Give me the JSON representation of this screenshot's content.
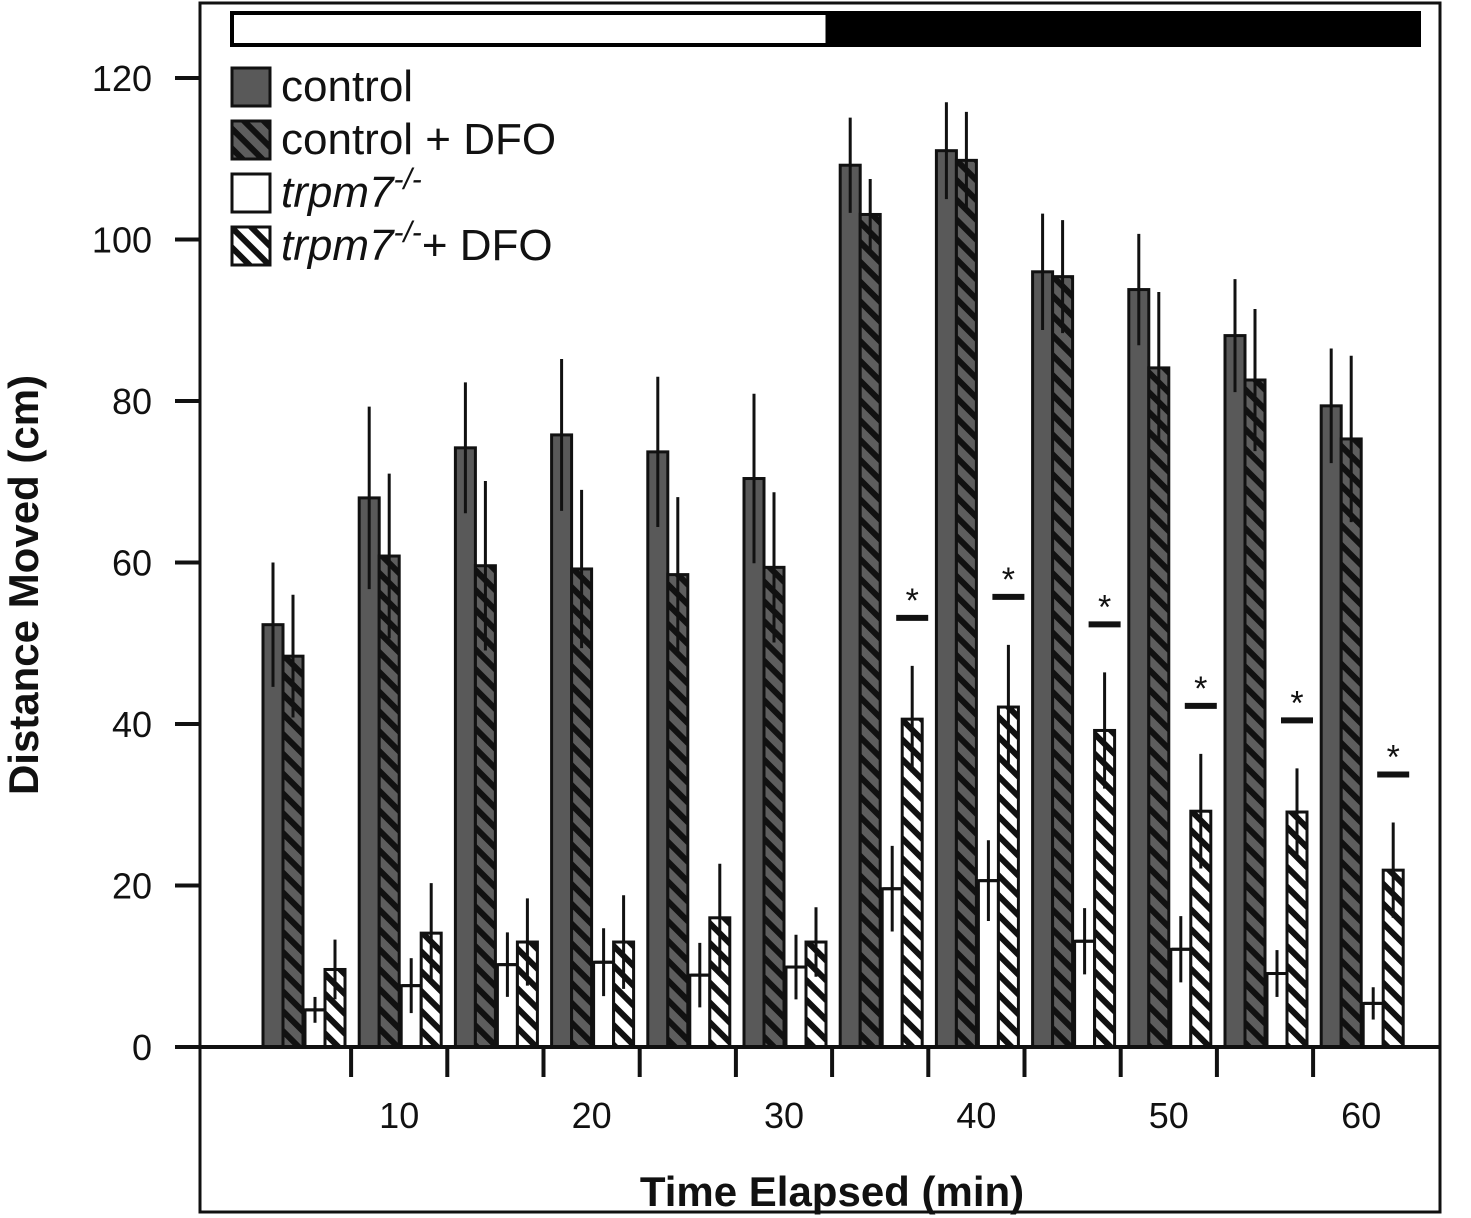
{
  "chart_data": {
    "type": "bar",
    "xlabel": "Time Elapsed (min)",
    "ylabel": "Distance Moved (cm)",
    "ylim": [
      0,
      120
    ],
    "yticks": [
      0,
      20,
      40,
      60,
      80,
      100,
      120
    ],
    "x_tick_labels": [
      "10",
      "20",
      "30",
      "40",
      "50",
      "60"
    ],
    "grid": false,
    "legend_position": "top-left",
    "light_dark_bar": {
      "light_fraction": 0.5,
      "light_color": "#ffffff",
      "dark_color": "#000000"
    },
    "significance_marker": "*",
    "significant_bins": [
      7,
      8,
      9,
      10,
      11,
      12
    ],
    "colors": {
      "control": "#595959",
      "outline": "#111111",
      "mutant": "#ffffff"
    },
    "series": [
      {
        "name": "control",
        "name_parts": [
          "control",
          "",
          ""
        ],
        "pattern": "solid-gray",
        "values": [
          52.3,
          68,
          74.2,
          75.8,
          73.7,
          70.4,
          109.2,
          111,
          96,
          93.8,
          88.1,
          79.4
        ],
        "errors": [
          7.7,
          11.3,
          8.1,
          9.4,
          9.3,
          10.5,
          5.9,
          6,
          7.2,
          6.9,
          7,
          7.1
        ]
      },
      {
        "name": "control + DFO",
        "name_parts": [
          "control + DFO",
          "",
          ""
        ],
        "pattern": "hatched-gray",
        "values": [
          48.4,
          60.8,
          59.6,
          59.2,
          58.5,
          59.4,
          103.1,
          109.8,
          95.4,
          84.1,
          82.6,
          75.3
        ],
        "errors": [
          7.6,
          10.2,
          10.5,
          9.8,
          9.6,
          9.3,
          4.4,
          6,
          7,
          9.4,
          8.8,
          10.3
        ]
      },
      {
        "name": "trpm7-/-",
        "name_parts": [
          "trpm7",
          "-/-",
          ""
        ],
        "pattern": "white",
        "values": [
          4.6,
          7.6,
          10.2,
          10.5,
          8.9,
          9.9,
          19.6,
          20.6,
          13.1,
          12.1,
          9.1,
          5.4
        ],
        "errors": [
          1.6,
          3.4,
          4,
          4.2,
          4,
          4,
          5.3,
          5,
          4.1,
          4.1,
          2.9,
          2
        ]
      },
      {
        "name": "trpm7-/-+ DFO",
        "name_parts": [
          "trpm7",
          "-/-",
          "+ DFO"
        ],
        "pattern": "hatched-white",
        "values": [
          9.6,
          14.1,
          13,
          13,
          16,
          13,
          40.6,
          42.1,
          39.2,
          29.2,
          29.1,
          21.9
        ],
        "errors": [
          3.7,
          6.2,
          5.4,
          5.8,
          6.7,
          4.3,
          6.6,
          7.7,
          7.2,
          7.1,
          5.4,
          5.9
        ]
      }
    ]
  }
}
